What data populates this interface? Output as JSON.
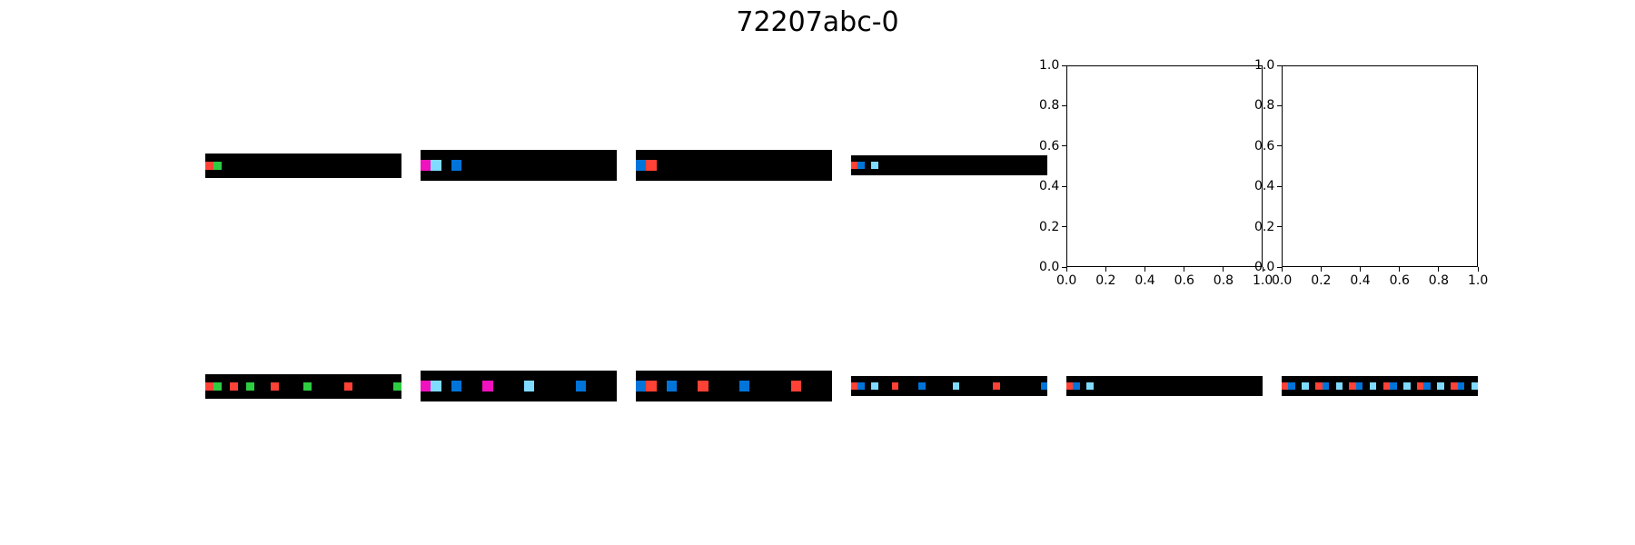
{
  "title": "72207abc-0",
  "colors": {
    "0": "#000000",
    "1": "#0074D9",
    "2": "#FF4136",
    "3": "#2ECC40",
    "6": "#F012BE",
    "8": "#7FDBFF"
  },
  "input_grids": [
    {
      "name": "train-1-input",
      "rows": 3,
      "cols": 24,
      "cells": [
        [
          1,
          0,
          2
        ],
        [
          1,
          1,
          3
        ]
      ]
    },
    {
      "name": "train-2-input",
      "rows": 3,
      "cols": 19,
      "cells": [
        [
          1,
          0,
          6
        ],
        [
          1,
          1,
          8
        ],
        [
          1,
          3,
          1
        ]
      ]
    },
    {
      "name": "train-3-input",
      "rows": 3,
      "cols": 19,
      "cells": [
        [
          1,
          0,
          1
        ],
        [
          1,
          1,
          2
        ]
      ]
    },
    {
      "name": "test-input",
      "rows": 3,
      "cols": 29,
      "cells": [
        [
          1,
          0,
          2
        ],
        [
          1,
          1,
          1
        ],
        [
          1,
          3,
          8
        ]
      ]
    }
  ],
  "output_grids": [
    {
      "name": "train-1-output",
      "rows": 3,
      "cols": 24,
      "cells": [
        [
          1,
          0,
          2
        ],
        [
          1,
          1,
          3
        ],
        [
          1,
          3,
          2
        ],
        [
          1,
          5,
          3
        ],
        [
          1,
          8,
          2
        ],
        [
          1,
          12,
          3
        ],
        [
          1,
          17,
          2
        ],
        [
          1,
          23,
          3
        ]
      ]
    },
    {
      "name": "train-2-output",
      "rows": 3,
      "cols": 19,
      "cells": [
        [
          1,
          0,
          6
        ],
        [
          1,
          1,
          8
        ],
        [
          1,
          3,
          1
        ],
        [
          1,
          6,
          6
        ],
        [
          1,
          10,
          8
        ],
        [
          1,
          15,
          1
        ]
      ]
    },
    {
      "name": "train-3-output",
      "rows": 3,
      "cols": 19,
      "cells": [
        [
          1,
          0,
          1
        ],
        [
          1,
          1,
          2
        ],
        [
          1,
          3,
          1
        ],
        [
          1,
          6,
          2
        ],
        [
          1,
          10,
          1
        ],
        [
          1,
          15,
          2
        ]
      ]
    },
    {
      "name": "test-output-1",
      "rows": 3,
      "cols": 29,
      "cells": [
        [
          1,
          0,
          2
        ],
        [
          1,
          1,
          1
        ],
        [
          1,
          3,
          8
        ],
        [
          1,
          6,
          2
        ],
        [
          1,
          10,
          1
        ],
        [
          1,
          15,
          8
        ],
        [
          1,
          21,
          2
        ],
        [
          1,
          28,
          1
        ]
      ]
    },
    {
      "name": "test-output-2",
      "rows": 3,
      "cols": 29,
      "cells": [
        [
          1,
          0,
          2
        ],
        [
          1,
          1,
          1
        ],
        [
          1,
          3,
          8
        ]
      ]
    },
    {
      "name": "test-output-3",
      "rows": 3,
      "cols": 29,
      "cells": [
        [
          1,
          0,
          2
        ],
        [
          1,
          1,
          1
        ],
        [
          1,
          3,
          8
        ],
        [
          1,
          5,
          2
        ],
        [
          1,
          6,
          1
        ],
        [
          1,
          8,
          8
        ],
        [
          1,
          10,
          2
        ],
        [
          1,
          11,
          1
        ],
        [
          1,
          13,
          8
        ],
        [
          1,
          15,
          2
        ],
        [
          1,
          16,
          1
        ],
        [
          1,
          18,
          8
        ],
        [
          1,
          20,
          2
        ],
        [
          1,
          21,
          1
        ],
        [
          1,
          23,
          8
        ],
        [
          1,
          25,
          2
        ],
        [
          1,
          26,
          1
        ],
        [
          1,
          28,
          8
        ]
      ]
    }
  ],
  "empty_axes": [
    {
      "name": "empty-axes-1",
      "xlim": [
        0.0,
        1.0
      ],
      "ylim": [
        0.0,
        1.0
      ],
      "xticks": [
        "0.0",
        "0.2",
        "0.4",
        "0.6",
        "0.8",
        "1.0"
      ],
      "yticks": [
        "0.0",
        "0.2",
        "0.4",
        "0.6",
        "0.8",
        "1.0"
      ]
    },
    {
      "name": "empty-axes-2",
      "xlim": [
        0.0,
        1.0
      ],
      "ylim": [
        0.0,
        1.0
      ],
      "xticks": [
        "0.0",
        "0.2",
        "0.4",
        "0.6",
        "0.8",
        "1.0"
      ],
      "yticks": [
        "0.0",
        "0.2",
        "0.4",
        "0.6",
        "0.8",
        "1.0"
      ]
    }
  ]
}
